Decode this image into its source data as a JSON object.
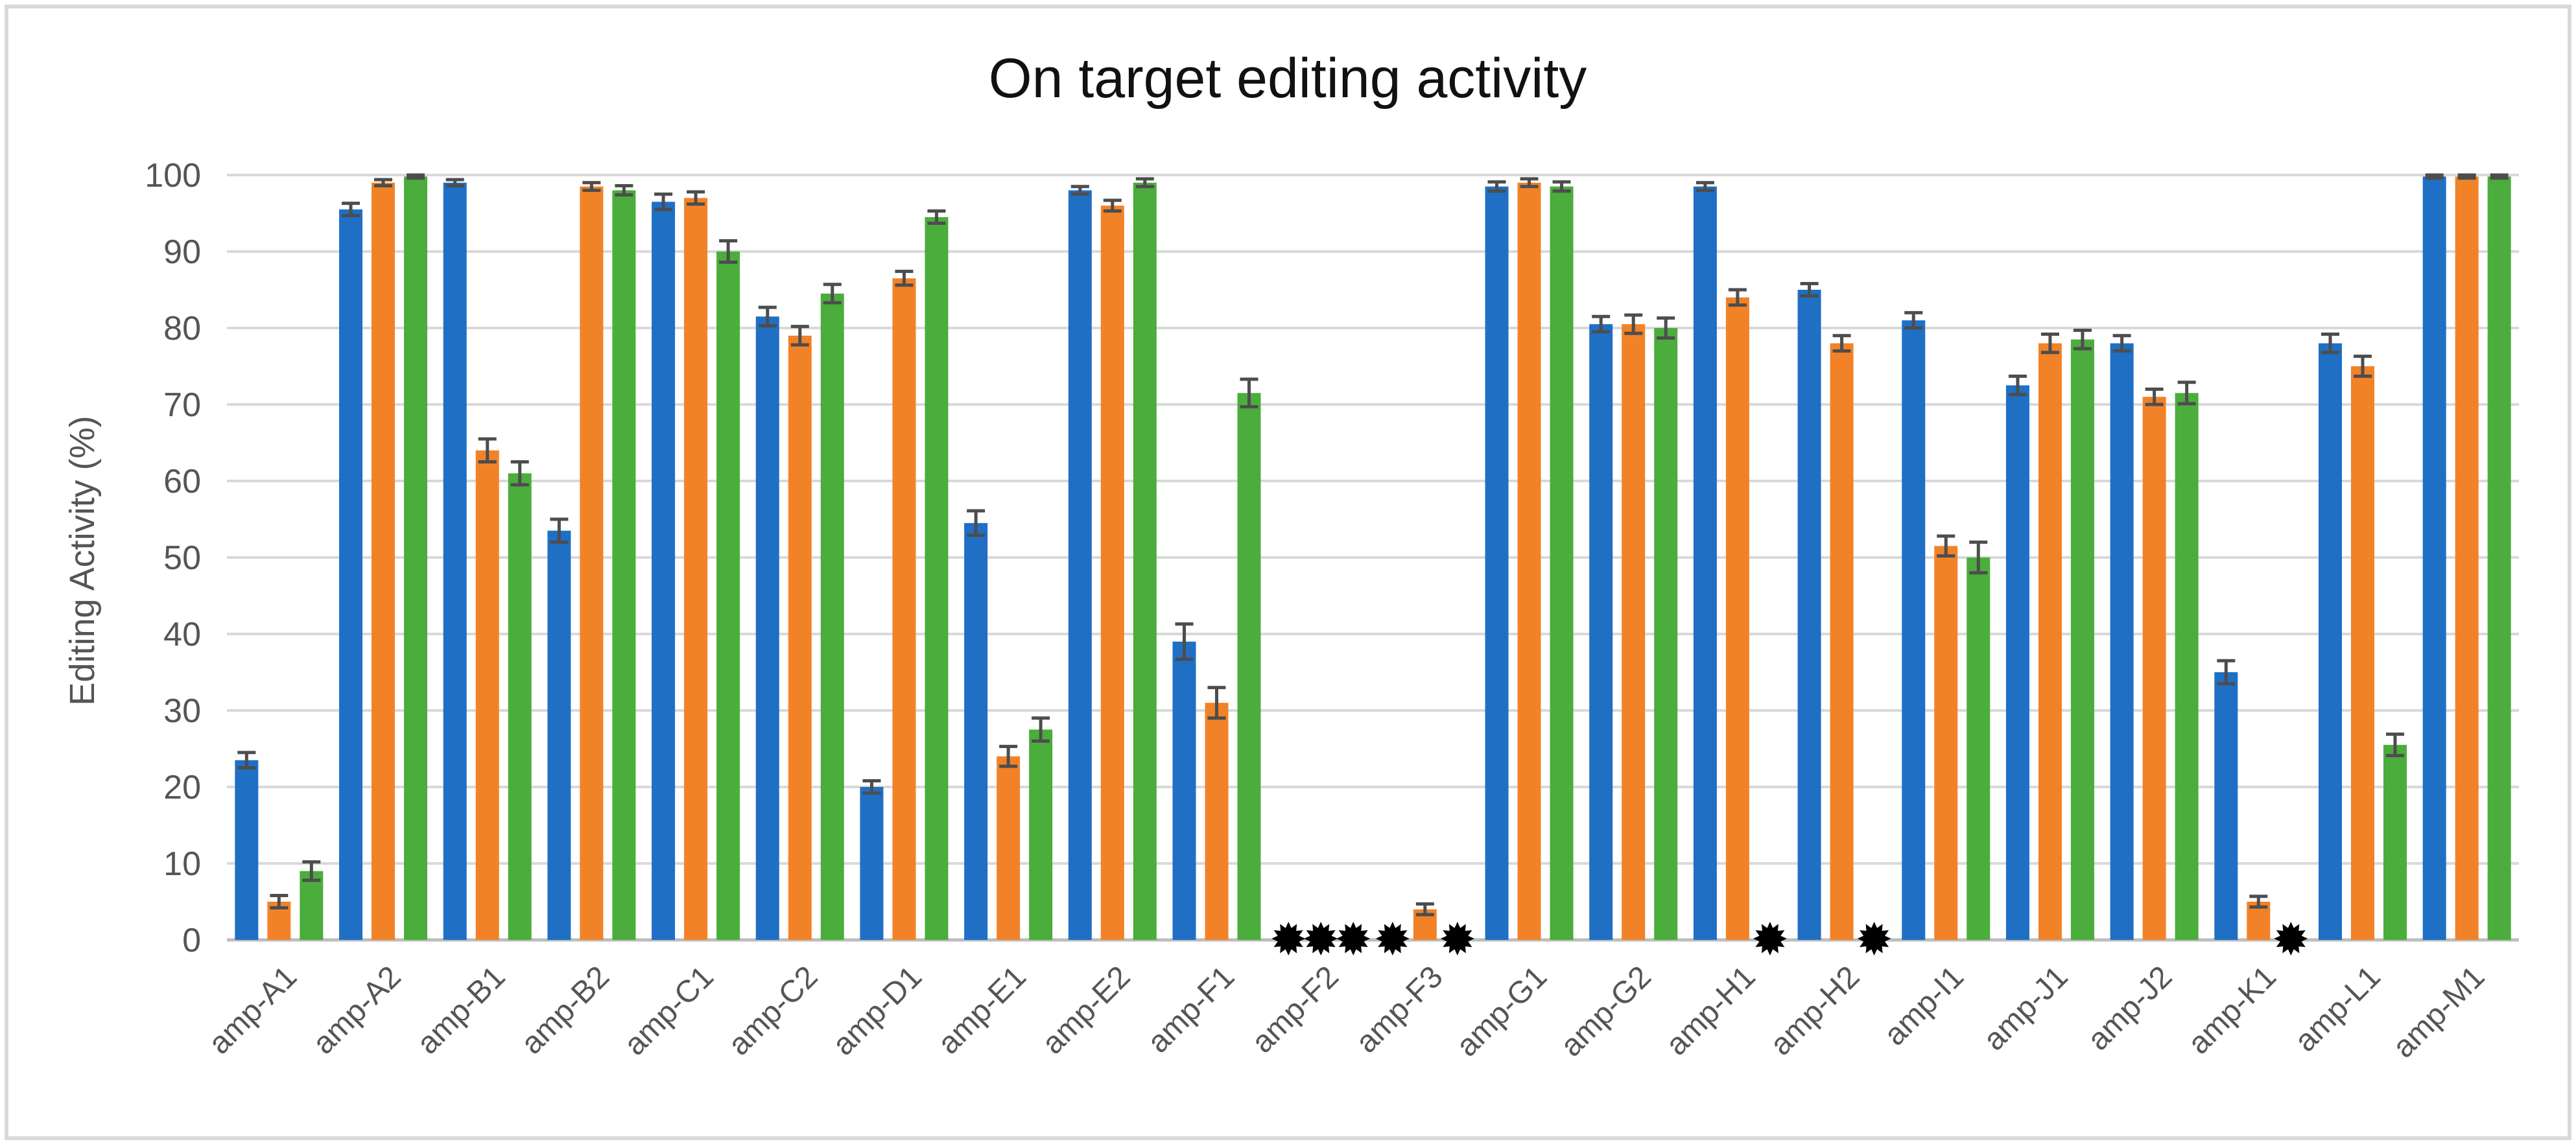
{
  "chart_data": {
    "type": "bar",
    "title": "On target editing activity",
    "xlabel": "",
    "ylabel": "Editing Activity (%)",
    "ylim": [
      0,
      100
    ],
    "yticks": [
      "0",
      "10",
      "20",
      "30",
      "40",
      "50",
      "60",
      "70",
      "80",
      "90",
      "100"
    ],
    "categories": [
      "amp-A1",
      "amp-A2",
      "amp-B1",
      "amp-B2",
      "amp-C1",
      "amp-C2",
      "amp-D1",
      "amp-E1",
      "amp-E2",
      "amp-F1",
      "amp-F2",
      "amp-F3",
      "amp-G1",
      "amp-G2",
      "amp-H1",
      "amp-H2",
      "amp-I1",
      "amp-J1",
      "amp-J2",
      "amp-K1",
      "amp-L1",
      "amp-M1"
    ],
    "grid": true,
    "legend": "none",
    "series": [
      {
        "color": "#1f6fc5",
        "values": [
          23.5,
          95.5,
          99,
          53.5,
          96.5,
          81.5,
          20,
          54.5,
          98,
          39,
          null,
          null,
          98.5,
          80.5,
          98.5,
          85,
          81,
          72.5,
          78,
          35,
          78,
          99.8
        ],
        "errors": [
          1,
          0.8,
          0.4,
          1.5,
          1,
          1.2,
          0.8,
          1.6,
          0.5,
          2.3,
          null,
          null,
          0.6,
          1,
          0.5,
          0.8,
          1,
          1.2,
          1,
          1.5,
          1.2,
          0.2
        ]
      },
      {
        "color": "#f28228",
        "values": [
          5,
          99,
          64,
          98.5,
          97,
          79,
          86.5,
          24,
          96,
          31,
          null,
          4,
          99,
          80.5,
          84,
          78,
          51.5,
          78,
          71,
          5,
          75,
          99.8
        ],
        "errors": [
          0.8,
          0.4,
          1.5,
          0.5,
          0.8,
          1.2,
          0.9,
          1.3,
          0.7,
          2,
          null,
          0.7,
          0.5,
          1.2,
          1,
          1,
          1.3,
          1.2,
          1,
          0.7,
          1.3,
          0.2
        ]
      },
      {
        "color": "#4bad3c",
        "values": [
          9,
          99.8,
          61,
          98,
          90,
          84.5,
          94.5,
          27.5,
          99,
          71.5,
          null,
          null,
          98.5,
          80,
          null,
          null,
          50,
          78.5,
          71.5,
          null,
          25.5,
          99.8
        ],
        "errors": [
          1.2,
          0.2,
          1.5,
          0.6,
          1.4,
          1.2,
          0.8,
          1.5,
          0.5,
          1.8,
          null,
          null,
          0.6,
          1.3,
          null,
          null,
          2,
          1.2,
          1.4,
          null,
          1.4,
          0.2
        ]
      }
    ],
    "markers": [
      {
        "category": "amp-F2",
        "series": 0,
        "symbol": "starburst"
      },
      {
        "category": "amp-F2",
        "series": 1,
        "symbol": "starburst"
      },
      {
        "category": "amp-F2",
        "series": 2,
        "symbol": "starburst"
      },
      {
        "category": "amp-F3",
        "series": 0,
        "symbol": "starburst"
      },
      {
        "category": "amp-F3",
        "series": 2,
        "symbol": "starburst"
      },
      {
        "category": "amp-H1",
        "series": 2,
        "symbol": "starburst"
      },
      {
        "category": "amp-H2",
        "series": 2,
        "symbol": "starburst"
      },
      {
        "category": "amp-K1",
        "series": 2,
        "symbol": "starburst"
      }
    ]
  }
}
